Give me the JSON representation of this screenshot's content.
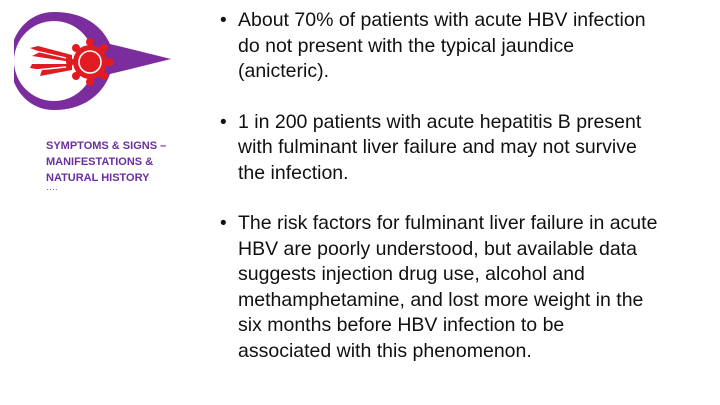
{
  "side_heading": {
    "lines": [
      "SYMPTOMS & SIGNS –",
      "MANIFESTATIONS &",
      "NATURAL HISTORY"
    ],
    "suffix": "…."
  },
  "bullets": [
    "About 70% of patients with acute HBV infection do not present with the typical jaundice (anicteric).",
    "1 in 200 patients with acute hepatitis B present with fulminant liver failure and may not survive the infection.",
    "The risk factors for fulminant liver failure in acute HBV are poorly understood, but available data suggests injection drug use, alcohol and methamphetamine, and lost more weight in the six months before HBV infection to be associated with this phenomenon."
  ],
  "bullet_glyph": "•",
  "colors": {
    "accent_purple": "#7b2d9e",
    "heading_purple": "#6b2fa0",
    "ribbon_red": "#e11b22",
    "body_text": "#111111"
  },
  "icons": {
    "logo": "red-ribbon-rosette-icon"
  }
}
